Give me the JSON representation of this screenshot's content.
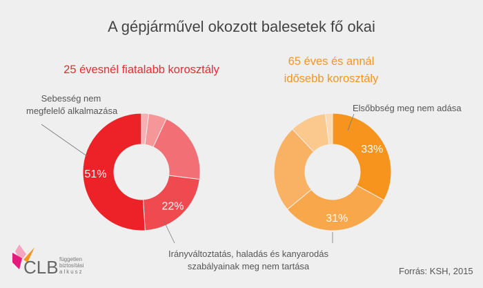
{
  "title": "A gépjárművel okozott balesetek fő okai",
  "source": "Forrás: KSH, 2015",
  "logo": {
    "text": "CLB",
    "tagline": [
      "független",
      "biztosítási",
      "alkusz"
    ]
  },
  "chart_data": [
    {
      "type": "pie",
      "donut": true,
      "subtitle": "25 évesnél fiatalabb korosztály",
      "values": [
        2,
        5,
        20,
        22,
        51
      ],
      "data_labels": [
        "",
        "",
        "",
        "22%",
        "51%"
      ],
      "colors": [
        "#f7b0b2",
        "#f59699",
        "#f27075",
        "#ef4a50",
        "#ed2128"
      ],
      "annotations": {
        "a51": [
          "Sebesség nem",
          "megfelelő alkalmazása"
        ],
        "a22": [
          "Irányváltoztatás, haladás és kanyarodás",
          "szabályainak meg nem tartása"
        ]
      }
    },
    {
      "type": "pie",
      "donut": true,
      "subtitle": [
        "65 éves és annál",
        "idősebb korosztály"
      ],
      "values": [
        33,
        31,
        24,
        10,
        2
      ],
      "data_labels": [
        "33%",
        "31%",
        "",
        "",
        ""
      ],
      "colors": [
        "#f7941d",
        "#f8a84b",
        "#f9b264",
        "#fbc98e",
        "#fcd9b0"
      ],
      "annotations": {
        "a33": [
          "Elsőbbség meg nem adása"
        ]
      }
    }
  ]
}
